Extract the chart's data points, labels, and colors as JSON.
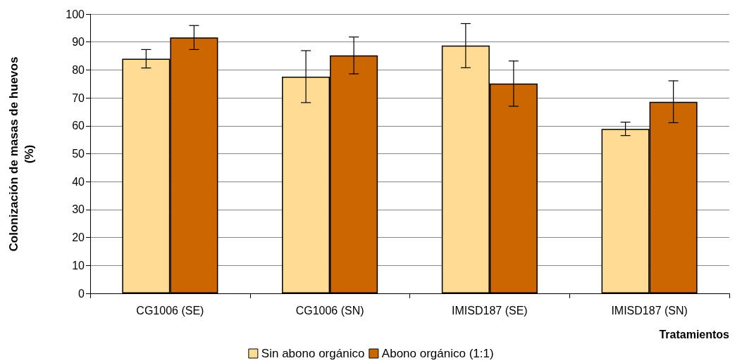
{
  "chart_data": {
    "type": "bar",
    "xlabel": "Tratamientos",
    "ylabel": "Colonización de masas de huevos\n(%)",
    "categories": [
      "CG1006 (SE)",
      "CG1006 (SN)",
      "IMISD187 (SE)",
      "IMISD187 (SN)"
    ],
    "series": [
      {
        "name": "Sin abono orgánico",
        "color": "#ffdb94",
        "values": [
          84,
          77.6,
          88.7,
          58.9
        ],
        "errors": [
          3.3,
          9.3,
          7.9,
          2.4
        ]
      },
      {
        "name": "Abono orgánico (1:1)",
        "color": "#cc6600",
        "values": [
          91.6,
          85.2,
          75.1,
          68.6
        ],
        "errors": [
          4.3,
          6.6,
          8.1,
          7.5
        ]
      }
    ],
    "ylim": [
      0,
      100
    ],
    "yticks": [
      0,
      10,
      20,
      30,
      40,
      50,
      60,
      70,
      80,
      90,
      100
    ],
    "grid": "y",
    "legend": "bottom"
  }
}
